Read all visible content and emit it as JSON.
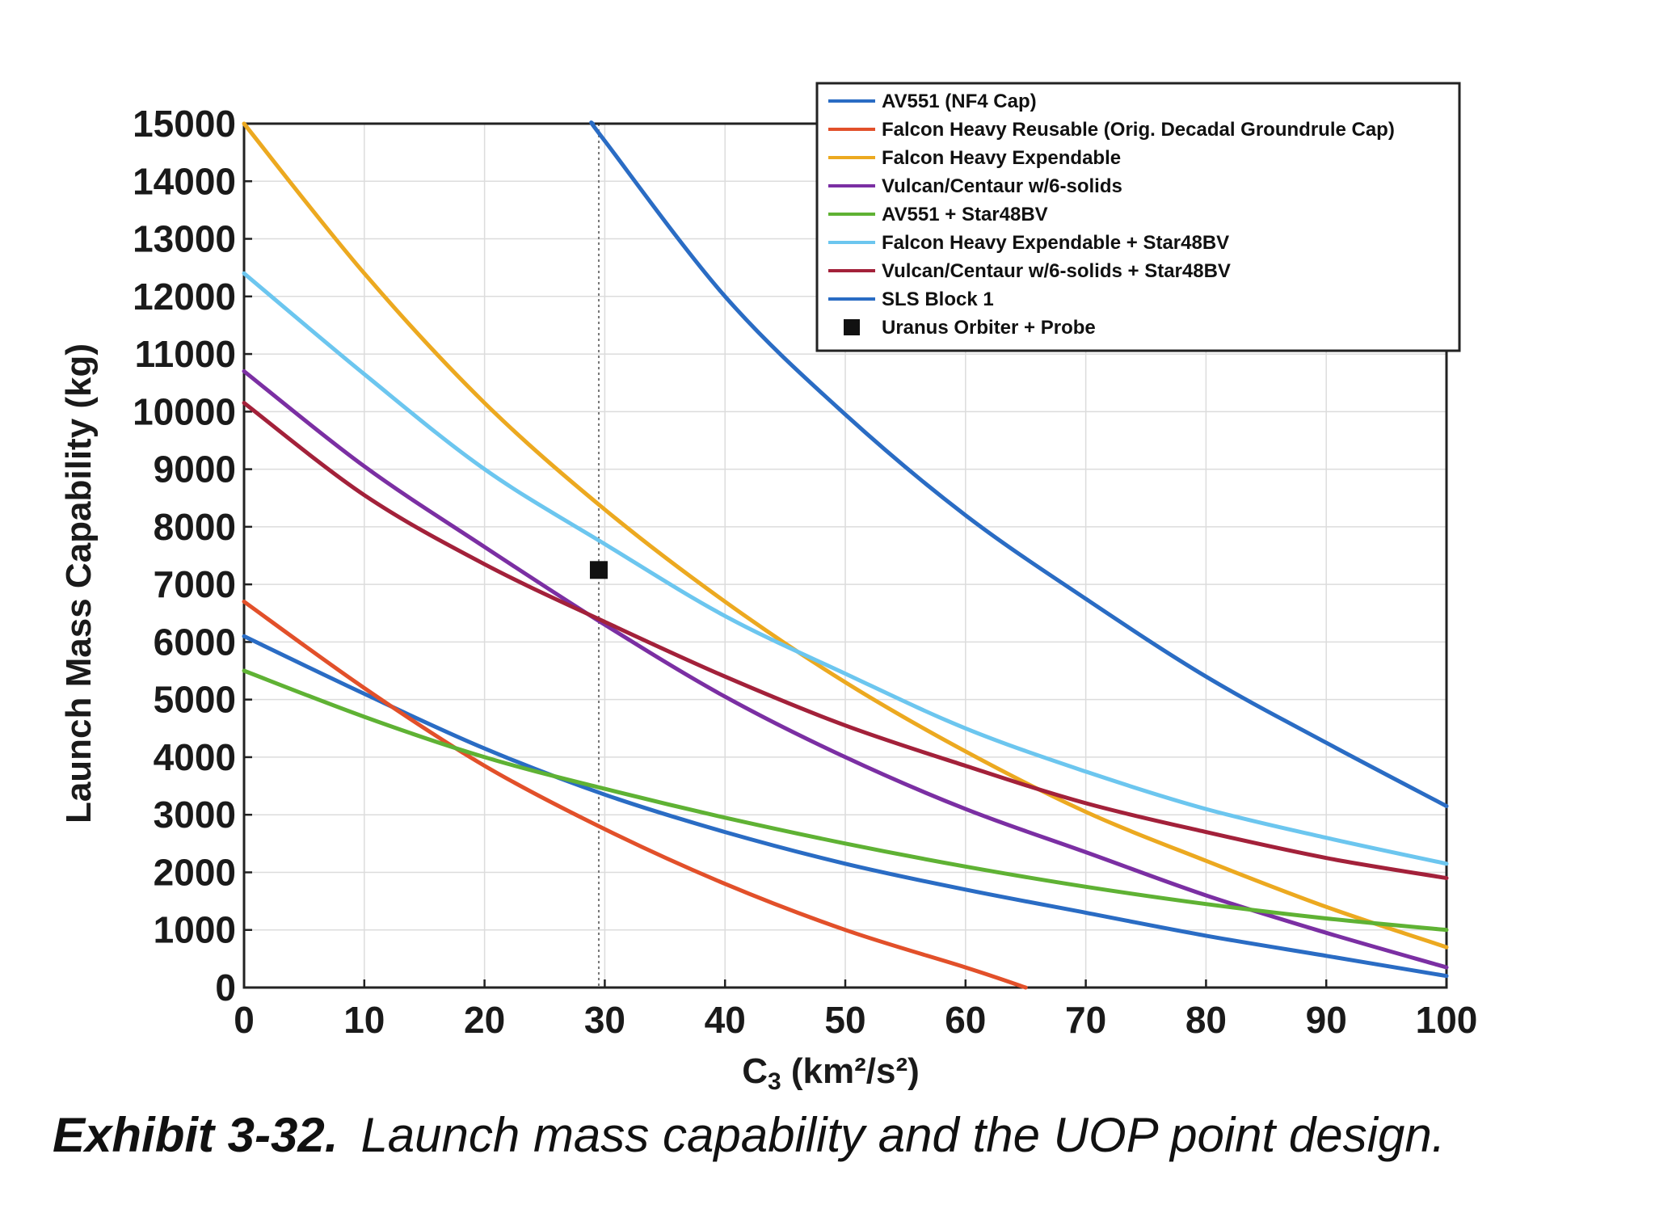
{
  "caption": {
    "label": "Exhibit 3-32.",
    "text": "Launch mass capability and the UOP point design."
  },
  "chart_data": {
    "type": "line",
    "title": "",
    "xlabel_main": "C",
    "xlabel_sub": "3",
    "xlabel_rest": " (km²/s²)",
    "ylabel": "Launch Mass Capability (kg)",
    "xlim": [
      0,
      100
    ],
    "ylim": [
      0,
      15000
    ],
    "x_ticks": [
      0,
      10,
      20,
      30,
      40,
      50,
      60,
      70,
      80,
      90,
      100
    ],
    "y_ticks": [
      0,
      1000,
      2000,
      3000,
      4000,
      5000,
      6000,
      7000,
      8000,
      9000,
      10000,
      11000,
      12000,
      13000,
      14000,
      15000
    ],
    "grid": true,
    "legend_position": "top-right",
    "reference_line_x": 29.5,
    "series": [
      {
        "name": "AV551 (NF4 Cap)",
        "color": "#2a6cc4",
        "x": [
          0,
          10,
          20,
          30,
          40,
          50,
          60,
          70,
          80,
          90,
          100
        ],
        "y": [
          6100,
          5100,
          4150,
          3350,
          2700,
          2150,
          1700,
          1300,
          900,
          550,
          200
        ]
      },
      {
        "name": "Falcon Heavy Reusable (Orig. Decadal Groundrule Cap)",
        "color": "#e2502a",
        "x": [
          0,
          10,
          20,
          30,
          40,
          50,
          60,
          65
        ],
        "y": [
          6700,
          5200,
          3850,
          2750,
          1800,
          1000,
          350,
          0
        ]
      },
      {
        "name": "Falcon Heavy Expendable",
        "color": "#eca920",
        "x": [
          0,
          10,
          20,
          30,
          40,
          50,
          60,
          70,
          80,
          90,
          100
        ],
        "y": [
          15000,
          12400,
          10150,
          8300,
          6700,
          5300,
          4100,
          3050,
          2200,
          1400,
          700
        ]
      },
      {
        "name": "Vulcan/Centaur w/6-solids",
        "color": "#7b2fa3",
        "x": [
          0,
          10,
          20,
          30,
          40,
          50,
          60,
          70,
          80,
          90,
          100
        ],
        "y": [
          10700,
          9050,
          7650,
          6300,
          5050,
          4000,
          3100,
          2350,
          1600,
          950,
          350
        ]
      },
      {
        "name": "AV551 + Star48BV",
        "color": "#5fb234",
        "x": [
          0,
          10,
          20,
          30,
          40,
          50,
          60,
          70,
          80,
          90,
          100
        ],
        "y": [
          5500,
          4700,
          4000,
          3450,
          2950,
          2500,
          2100,
          1750,
          1450,
          1200,
          1000
        ]
      },
      {
        "name": "Falcon Heavy Expendable + Star48BV",
        "color": "#6cc6ef",
        "x": [
          0,
          10,
          20,
          30,
          40,
          50,
          60,
          70,
          80,
          90,
          100
        ],
        "y": [
          12400,
          10650,
          9000,
          7700,
          6450,
          5450,
          4500,
          3750,
          3100,
          2600,
          2150
        ]
      },
      {
        "name": "Vulcan/Centaur w/6-solids + Star48BV",
        "color": "#a3213a",
        "x": [
          0,
          10,
          20,
          30,
          40,
          50,
          60,
          70,
          80,
          90,
          100
        ],
        "y": [
          10150,
          8550,
          7350,
          6350,
          5400,
          4550,
          3850,
          3200,
          2700,
          2250,
          1900
        ]
      },
      {
        "name": "SLS Block 1",
        "color": "#2a6cc4",
        "x": [
          29,
          30,
          40,
          50,
          60,
          70,
          80,
          90,
          100
        ],
        "y": [
          15000,
          14700,
          12000,
          9950,
          8200,
          6750,
          5400,
          4250,
          3150
        ]
      }
    ],
    "points": [
      {
        "name": "Uranus Orbiter + Probe",
        "color": "#111111",
        "x": 29.5,
        "y": 7250
      }
    ]
  }
}
